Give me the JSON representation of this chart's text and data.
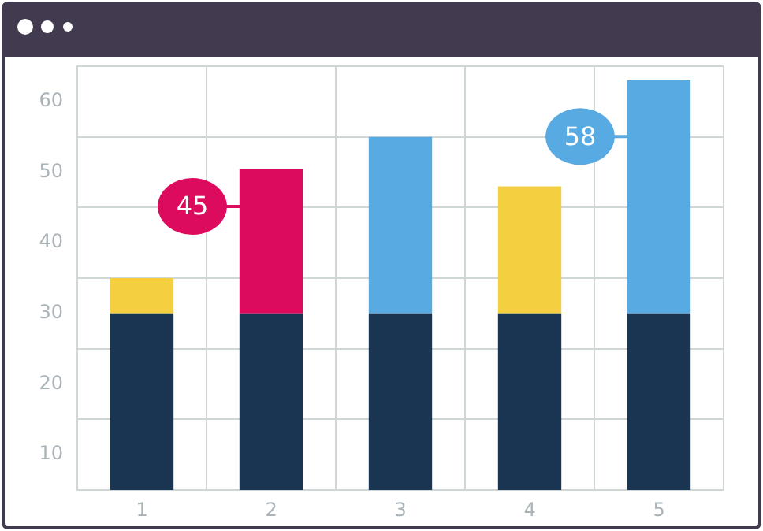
{
  "chart_data": {
    "type": "bar",
    "stacked": true,
    "categories": [
      "1",
      "2",
      "3",
      "4",
      "5"
    ],
    "series": [
      {
        "color": "#1a3552",
        "values": [
          30,
          30,
          30,
          30,
          30
        ]
      },
      {
        "colors": [
          "#f4cf3f",
          "#dc0b5e",
          "#58aae2",
          "#f4cf3f",
          "#58aae2"
        ],
        "values": [
          5,
          20.5,
          25,
          18,
          33
        ]
      }
    ],
    "ylim": [
      5,
      65
    ],
    "yticks": [
      {
        "value": 5,
        "label": null
      },
      10,
      {
        "value": 15,
        "label": null
      },
      20,
      {
        "value": 25,
        "label": null
      },
      30,
      {
        "value": 35,
        "label": null
      },
      40,
      {
        "value": 45,
        "label": null
      },
      50,
      {
        "value": 55,
        "label": null
      },
      60,
      {
        "value": 65,
        "label": null
      }
    ],
    "grid": true,
    "legend": false,
    "annotations": [
      "45",
      "58"
    ]
  }
}
